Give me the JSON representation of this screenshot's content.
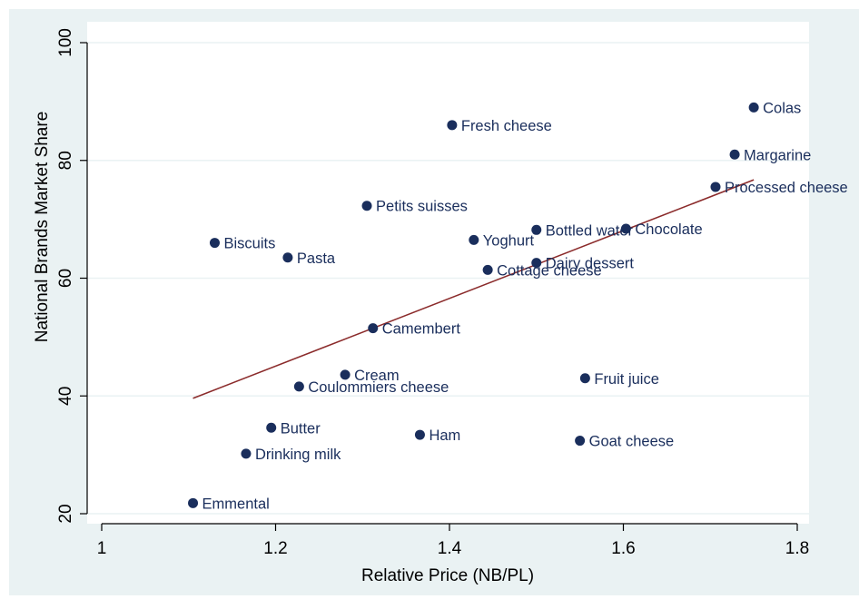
{
  "colors": {
    "outer_background": "#eaf2f3",
    "plot_background": "#ffffff",
    "gridline": "#eaf2f3",
    "marker": "#1a2e5c",
    "fit_line": "#8b2b2b",
    "text": "#000000"
  },
  "chart_data": {
    "type": "scatter",
    "title": "",
    "xlabel": "Relative Price (NB/PL)",
    "ylabel": "National Brands Market Share",
    "xlim": [
      1,
      1.8
    ],
    "ylim": [
      20,
      100
    ],
    "x_ticks": [
      1,
      1.2,
      1.4,
      1.6,
      1.8
    ],
    "x_tick_labels": [
      "1",
      "1.2",
      "1.4",
      "1.6",
      "1.8"
    ],
    "y_ticks": [
      20,
      40,
      60,
      80,
      100
    ],
    "y_tick_labels": [
      "20",
      "40",
      "60",
      "80",
      "100"
    ],
    "grid": true,
    "points": [
      {
        "label": "Colas",
        "x": 1.75,
        "y": 89
      },
      {
        "label": "Fresh cheese",
        "x": 1.403,
        "y": 86
      },
      {
        "label": "Margarine",
        "x": 1.728,
        "y": 81
      },
      {
        "label": "Processed cheese",
        "x": 1.706,
        "y": 75.5
      },
      {
        "label": "Petits suisses",
        "x": 1.305,
        "y": 72.3
      },
      {
        "label": "Bottled water",
        "x": 1.5,
        "y": 68.2
      },
      {
        "label": "Chocolate",
        "x": 1.603,
        "y": 68.4
      },
      {
        "label": "Biscuits",
        "x": 1.13,
        "y": 66
      },
      {
        "label": "Yoghurt",
        "x": 1.428,
        "y": 66.5
      },
      {
        "label": "Pasta",
        "x": 1.214,
        "y": 63.5
      },
      {
        "label": "Dairy dessert",
        "x": 1.5,
        "y": 62.6
      },
      {
        "label": "Cottage cheese",
        "x": 1.444,
        "y": 61.4
      },
      {
        "label": "Camembert",
        "x": 1.312,
        "y": 51.5
      },
      {
        "label": "Cream",
        "x": 1.28,
        "y": 43.6
      },
      {
        "label": "Fruit juice",
        "x": 1.556,
        "y": 43
      },
      {
        "label": "Coulommiers cheese",
        "x": 1.227,
        "y": 41.6
      },
      {
        "label": "Butter",
        "x": 1.195,
        "y": 34.6
      },
      {
        "label": "Ham",
        "x": 1.366,
        "y": 33.4
      },
      {
        "label": "Goat cheese",
        "x": 1.55,
        "y": 32.4
      },
      {
        "label": "Drinking milk",
        "x": 1.166,
        "y": 30.2
      },
      {
        "label": "Emmental",
        "x": 1.105,
        "y": 21.8
      }
    ],
    "fit_line": {
      "x": [
        1.105,
        1.75
      ],
      "y": [
        39.6,
        76.7
      ]
    }
  }
}
